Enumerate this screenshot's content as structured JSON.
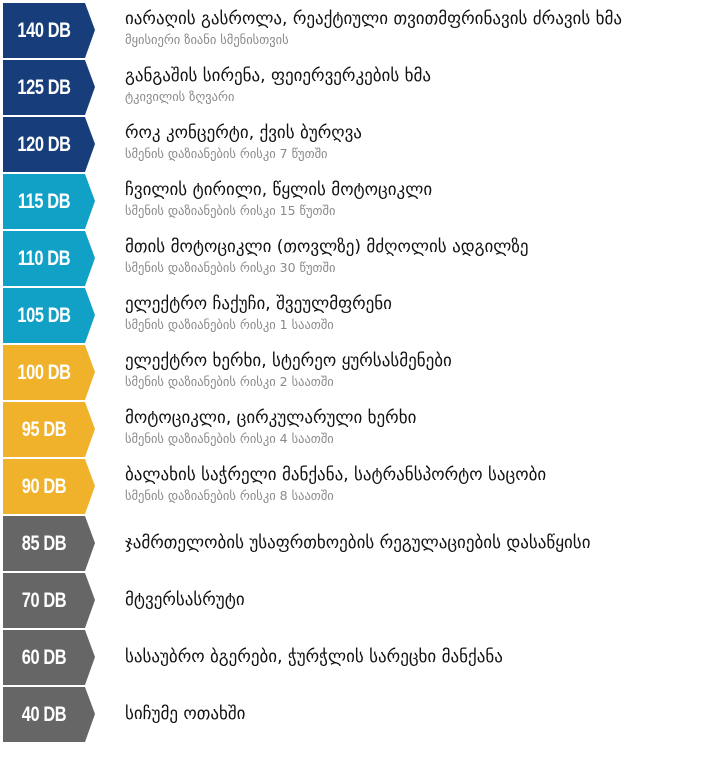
{
  "colors": {
    "extreme": "#173e7b",
    "high": "#12a1c6",
    "medium": "#f0b12b",
    "safe": "#666666"
  },
  "levels": [
    {
      "db": "140 DB",
      "level": "extreme",
      "title": "იარაღის გასროლა, რეაქტიული თვითმფრინავის ძრავის ხმა",
      "sub": "მყისიერი ზიანი სმენისთვის"
    },
    {
      "db": "125 DB",
      "level": "extreme",
      "title": "განგაშის სირენა, ფეიერვერკების ხმა",
      "sub": "ტკივილის ზღვარი"
    },
    {
      "db": "120 DB",
      "level": "extreme",
      "title": "როკ კონცერტი, ქვის ბურღვა",
      "sub": "სმენის დაზიანების რისკი 7 წუთში"
    },
    {
      "db": "115 DB",
      "level": "high",
      "title": "ჩვილის ტირილი, წყლის მოტოციკლი",
      "sub": "სმენის დაზიანების რისკი 15 წუთში"
    },
    {
      "db": "110 DB",
      "level": "high",
      "title": "მთის მოტოციკლი (თოვლზე) მძღოლის ადგილზე",
      "sub": "სმენის დაზიანების რისკი 30 წუთში"
    },
    {
      "db": "105 DB",
      "level": "high",
      "title": "ელექტრო ჩაქუჩი, შვეულმფრენი",
      "sub": "სმენის დაზიანების რისკი 1 საათში"
    },
    {
      "db": "100 DB",
      "level": "medium",
      "title": "ელექტრო ხერხი, სტერეო ყურსასმენები",
      "sub": "სმენის დაზიანების რისკი 2 საათში"
    },
    {
      "db": "95 DB",
      "level": "medium",
      "title": "მოტოციკლი, ცირკულარული ხერხი",
      "sub": "სმენის დაზიანების რისკი 4 საათში"
    },
    {
      "db": "90 DB",
      "level": "medium",
      "title": "ბალახის საჭრელი მანქანა, სატრანსპორტო საცობი",
      "sub": "სმენის დაზიანების რისკი 8 საათში"
    },
    {
      "db": "85 DB",
      "level": "safe",
      "title": "ჯამრთელობის უსაფრთხოების რეგულაციების დასაწყისი",
      "sub": ""
    },
    {
      "db": "70 DB",
      "level": "safe",
      "title": "მტვერსასრუტი",
      "sub": ""
    },
    {
      "db": "60 DB",
      "level": "safe",
      "title": "სასაუბრო ბგერები, ჭურჭლის სარეცხი მანქანა",
      "sub": ""
    },
    {
      "db": "40 DB",
      "level": "safe",
      "title": "სიჩუმე ოთახში",
      "sub": ""
    }
  ]
}
